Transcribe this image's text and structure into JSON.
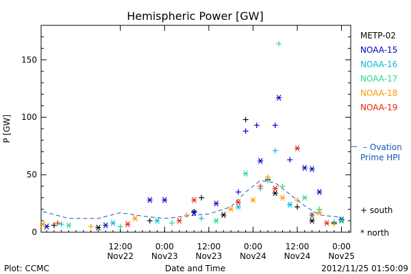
{
  "chart_data": {
    "type": "scatter",
    "title": "Hemispheric Power [GW]",
    "xlabel": "Date and Time",
    "ylabel": "P [GW]",
    "xlim": [
      "2012-11-21T14:30",
      "2012-11-25T02:30"
    ],
    "ylim": [
      0,
      180
    ],
    "y_ticks": [
      0,
      50,
      100,
      150
    ],
    "x_ticks": [
      {
        "t": "2012-11-22T12:00",
        "label1": "12:00",
        "label2": "Nov22"
      },
      {
        "t": "2012-11-23T00:00",
        "label1": "0:00",
        "label2": "Nov23"
      },
      {
        "t": "2012-11-23T12:00",
        "label1": "12:00",
        "label2": "Nov23"
      },
      {
        "t": "2012-11-24T00:00",
        "label1": "0:00",
        "label2": "Nov24"
      },
      {
        "t": "2012-11-24T12:00",
        "label1": "12:00",
        "label2": "Nov24"
      },
      {
        "t": "2012-11-25T00:00",
        "label1": "0:00",
        "label2": "Nov25"
      }
    ],
    "grid": false,
    "legend_position": "right",
    "series": [
      {
        "name": "METP-02",
        "color": "#000000",
        "points": [
          [
            "2012-11-21T18:00",
            6,
            "s"
          ],
          [
            "2012-11-22T06:00",
            4,
            "n"
          ],
          [
            "2012-11-22T20:00",
            10,
            "s"
          ],
          [
            "2012-11-23T08:00",
            18,
            "s"
          ],
          [
            "2012-11-23T10:00",
            30,
            "s"
          ],
          [
            "2012-11-23T16:00",
            15,
            "n"
          ],
          [
            "2012-11-23T22:00",
            98,
            "s"
          ],
          [
            "2012-11-24T04:00",
            46,
            "s"
          ],
          [
            "2012-11-24T06:00",
            34,
            "n"
          ],
          [
            "2012-11-24T12:00",
            22,
            "s"
          ],
          [
            "2012-11-24T16:00",
            10,
            "n"
          ],
          [
            "2012-11-24T22:00",
            8,
            "s"
          ]
        ]
      },
      {
        "name": "NOAA-15",
        "color": "#0000cc",
        "points": [
          [
            "2012-11-21T16:00",
            5,
            "n"
          ],
          [
            "2012-11-22T08:00",
            6,
            "n"
          ],
          [
            "2012-11-22T20:00",
            28,
            "n"
          ],
          [
            "2012-11-23T00:00",
            28,
            "n"
          ],
          [
            "2012-11-23T08:00",
            17,
            "n"
          ],
          [
            "2012-11-23T14:00",
            25,
            "n"
          ],
          [
            "2012-11-23T20:00",
            35,
            "s"
          ],
          [
            "2012-11-23T22:00",
            88,
            "s"
          ],
          [
            "2012-11-24T01:00",
            93,
            "s"
          ],
          [
            "2012-11-24T02:00",
            62,
            "n"
          ],
          [
            "2012-11-24T06:00",
            93,
            "s"
          ],
          [
            "2012-11-24T07:00",
            117,
            "n"
          ],
          [
            "2012-11-24T10:00",
            63,
            "s"
          ],
          [
            "2012-11-24T14:00",
            56,
            "n"
          ],
          [
            "2012-11-24T16:00",
            55,
            "n"
          ],
          [
            "2012-11-24T18:00",
            35,
            "n"
          ],
          [
            "2012-11-25T00:00",
            11,
            "n"
          ]
        ]
      },
      {
        "name": "NOAA-16",
        "color": "#00bbdd",
        "points": [
          [
            "2012-11-21T20:00",
            7,
            "s"
          ],
          [
            "2012-11-22T10:00",
            8,
            "n"
          ],
          [
            "2012-11-22T22:00",
            10,
            "n"
          ],
          [
            "2012-11-23T10:00",
            12,
            "s"
          ],
          [
            "2012-11-23T20:00",
            22,
            "n"
          ],
          [
            "2012-11-24T02:00",
            38,
            "s"
          ],
          [
            "2012-11-24T06:00",
            71,
            "s"
          ],
          [
            "2012-11-24T10:00",
            24,
            "n"
          ],
          [
            "2012-11-24T16:00",
            15,
            "n"
          ],
          [
            "2012-11-24T22:00",
            9,
            "s"
          ]
        ]
      },
      {
        "name": "NOAA-17",
        "color": "#22dd88",
        "points": [
          [
            "2012-11-21T22:00",
            6,
            "n"
          ],
          [
            "2012-11-22T12:00",
            5,
            "s"
          ],
          [
            "2012-11-23T02:00",
            8,
            "s"
          ],
          [
            "2012-11-23T14:00",
            10,
            "n"
          ],
          [
            "2012-11-23T22:00",
            51,
            "n"
          ],
          [
            "2012-11-24T04:00",
            45,
            "s"
          ],
          [
            "2012-11-24T07:00",
            164,
            "s"
          ],
          [
            "2012-11-24T08:00",
            40,
            "s"
          ],
          [
            "2012-11-24T14:00",
            30,
            "n"
          ],
          [
            "2012-11-24T18:00",
            20,
            "s"
          ],
          [
            "2012-11-25T00:00",
            10,
            "n"
          ]
        ]
      },
      {
        "name": "NOAA-18",
        "color": "#ff9900",
        "points": [
          [
            "2012-11-21T15:00",
            7,
            "n"
          ],
          [
            "2012-11-22T04:00",
            5,
            "s"
          ],
          [
            "2012-11-22T16:00",
            12,
            "n"
          ],
          [
            "2012-11-23T06:00",
            15,
            "s"
          ],
          [
            "2012-11-23T18:00",
            20,
            "n"
          ],
          [
            "2012-11-24T00:00",
            28,
            "n"
          ],
          [
            "2012-11-24T04:00",
            48,
            "s"
          ],
          [
            "2012-11-24T08:00",
            30,
            "n"
          ],
          [
            "2012-11-24T12:00",
            28,
            "s"
          ],
          [
            "2012-11-24T18:00",
            17,
            "n"
          ],
          [
            "2012-11-24T22:00",
            7,
            "s"
          ]
        ]
      },
      {
        "name": "NOAA-19",
        "color": "#ee2200",
        "points": [
          [
            "2012-11-21T19:00",
            8,
            "s"
          ],
          [
            "2012-11-22T14:00",
            7,
            "n"
          ],
          [
            "2012-11-23T04:00",
            10,
            "n"
          ],
          [
            "2012-11-23T08:00",
            28,
            "n"
          ],
          [
            "2012-11-23T20:00",
            26,
            "n"
          ],
          [
            "2012-11-24T02:00",
            40,
            "s"
          ],
          [
            "2012-11-24T06:00",
            38,
            "n"
          ],
          [
            "2012-11-24T12:00",
            73,
            "n"
          ],
          [
            "2012-11-24T16:00",
            15,
            "s"
          ],
          [
            "2012-11-24T20:00",
            8,
            "n"
          ]
        ]
      }
    ],
    "ovation_hpi": [
      [
        "2012-11-21T15:00",
        18
      ],
      [
        "2012-11-21T22:00",
        12
      ],
      [
        "2012-11-22T06:00",
        12
      ],
      [
        "2012-11-22T12:00",
        17
      ],
      [
        "2012-11-22T18:00",
        14
      ],
      [
        "2012-11-23T00:00",
        12
      ],
      [
        "2012-11-23T06:00",
        14
      ],
      [
        "2012-11-23T12:00",
        16
      ],
      [
        "2012-11-23T18:00",
        22
      ],
      [
        "2012-11-23T22:00",
        35
      ],
      [
        "2012-11-24T02:00",
        45
      ],
      [
        "2012-11-24T06:00",
        43
      ],
      [
        "2012-11-24T10:00",
        33
      ],
      [
        "2012-11-24T14:00",
        23
      ],
      [
        "2012-11-24T18:00",
        15
      ],
      [
        "2012-11-25T00:00",
        13
      ]
    ]
  },
  "legend": {
    "ovation_label_1": "– Ovation",
    "ovation_label_2": "Prime HPI",
    "ovation_color": "#1155bb",
    "south_label": "+ south",
    "north_label": "* north"
  },
  "footer": {
    "left": "Plot: CCMC",
    "center": "Date and Time",
    "right": "2012/11/25 01:50:09"
  }
}
